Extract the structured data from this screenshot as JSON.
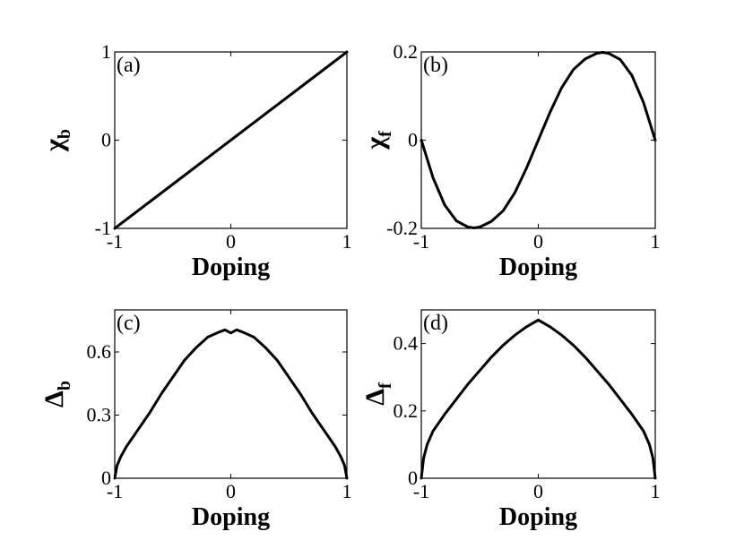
{
  "chart_data": [
    {
      "type": "line",
      "panel_label": "(a)",
      "xlabel": "Doping",
      "ylabel": {
        "main": "χ",
        "sub": "b"
      },
      "xlim": [
        -1,
        1
      ],
      "ylim": [
        -1,
        1
      ],
      "xticks": [
        -1,
        0,
        1
      ],
      "xtick_labels": [
        "-1",
        "0",
        "1"
      ],
      "yticks": [
        -1,
        0,
        1
      ],
      "ytick_labels": [
        "-1",
        "0",
        "1"
      ],
      "grid": false,
      "series": [
        {
          "x": [
            -1,
            -0.5,
            0,
            0.5,
            1
          ],
          "y": [
            -1,
            -0.5,
            0,
            0.5,
            1
          ]
        }
      ]
    },
    {
      "type": "line",
      "panel_label": "(b)",
      "xlabel": "Doping",
      "ylabel": {
        "main": "χ",
        "sub": "f"
      },
      "xlim": [
        -1,
        1
      ],
      "ylim": [
        -0.2,
        0.2
      ],
      "xticks": [
        -1,
        0,
        1
      ],
      "xtick_labels": [
        "-1",
        "0",
        "1"
      ],
      "yticks": [
        -0.2,
        0,
        0.2
      ],
      "ytick_labels": [
        "-0.2",
        "0",
        "0.2"
      ],
      "grid": false,
      "series": [
        {
          "x": [
            -1,
            -0.9,
            -0.8,
            -0.7,
            -0.6,
            -0.55,
            -0.5,
            -0.4,
            -0.3,
            -0.2,
            -0.1,
            0,
            0.1,
            0.2,
            0.3,
            0.4,
            0.5,
            0.55,
            0.6,
            0.7,
            0.8,
            0.9,
            1
          ],
          "y": [
            0,
            -0.085,
            -0.147,
            -0.183,
            -0.197,
            -0.199,
            -0.197,
            -0.184,
            -0.16,
            -0.119,
            -0.063,
            0,
            0.063,
            0.119,
            0.16,
            0.184,
            0.197,
            0.199,
            0.197,
            0.183,
            0.147,
            0.085,
            0
          ]
        }
      ]
    },
    {
      "type": "line",
      "panel_label": "(c)",
      "xlabel": "Doping",
      "ylabel": {
        "main": "Δ",
        "sub": "b"
      },
      "xlim": [
        -1,
        1
      ],
      "ylim": [
        0,
        0.8
      ],
      "xticks": [
        -1,
        0,
        1
      ],
      "xtick_labels": [
        "-1",
        "0",
        "1"
      ],
      "yticks": [
        0,
        0.3,
        0.6
      ],
      "ytick_labels": [
        "0",
        "0.3",
        "0.6"
      ],
      "grid": false,
      "series": [
        {
          "x": [
            -1,
            -0.98,
            -0.95,
            -0.9,
            -0.8,
            -0.7,
            -0.6,
            -0.5,
            -0.4,
            -0.3,
            -0.2,
            -0.1,
            -0.05,
            0,
            0.05,
            0.1,
            0.2,
            0.3,
            0.4,
            0.5,
            0.6,
            0.7,
            0.8,
            0.9,
            0.95,
            0.98,
            1
          ],
          "y": [
            0,
            0.06,
            0.1,
            0.15,
            0.23,
            0.31,
            0.4,
            0.48,
            0.56,
            0.62,
            0.67,
            0.695,
            0.705,
            0.69,
            0.705,
            0.695,
            0.67,
            0.62,
            0.56,
            0.48,
            0.4,
            0.31,
            0.23,
            0.15,
            0.1,
            0.06,
            0
          ]
        }
      ]
    },
    {
      "type": "line",
      "panel_label": "(d)",
      "xlabel": "Doping",
      "ylabel": {
        "main": "Δ",
        "sub": "f"
      },
      "xlim": [
        -1,
        1
      ],
      "ylim": [
        0,
        0.5
      ],
      "xticks": [
        -1,
        0,
        1
      ],
      "xtick_labels": [
        "-1",
        "0",
        "1"
      ],
      "yticks": [
        0,
        0.2,
        0.4
      ],
      "ytick_labels": [
        "0",
        "0.2",
        "0.4"
      ],
      "grid": false,
      "series": [
        {
          "x": [
            -1,
            -0.98,
            -0.95,
            -0.9,
            -0.8,
            -0.7,
            -0.6,
            -0.5,
            -0.4,
            -0.3,
            -0.2,
            -0.1,
            0,
            0.1,
            0.2,
            0.3,
            0.4,
            0.5,
            0.6,
            0.7,
            0.8,
            0.9,
            0.95,
            0.98,
            1
          ],
          "y": [
            0,
            0.06,
            0.1,
            0.14,
            0.19,
            0.235,
            0.28,
            0.32,
            0.36,
            0.395,
            0.425,
            0.45,
            0.47,
            0.45,
            0.425,
            0.395,
            0.36,
            0.32,
            0.28,
            0.235,
            0.19,
            0.14,
            0.1,
            0.06,
            0
          ]
        }
      ]
    }
  ]
}
